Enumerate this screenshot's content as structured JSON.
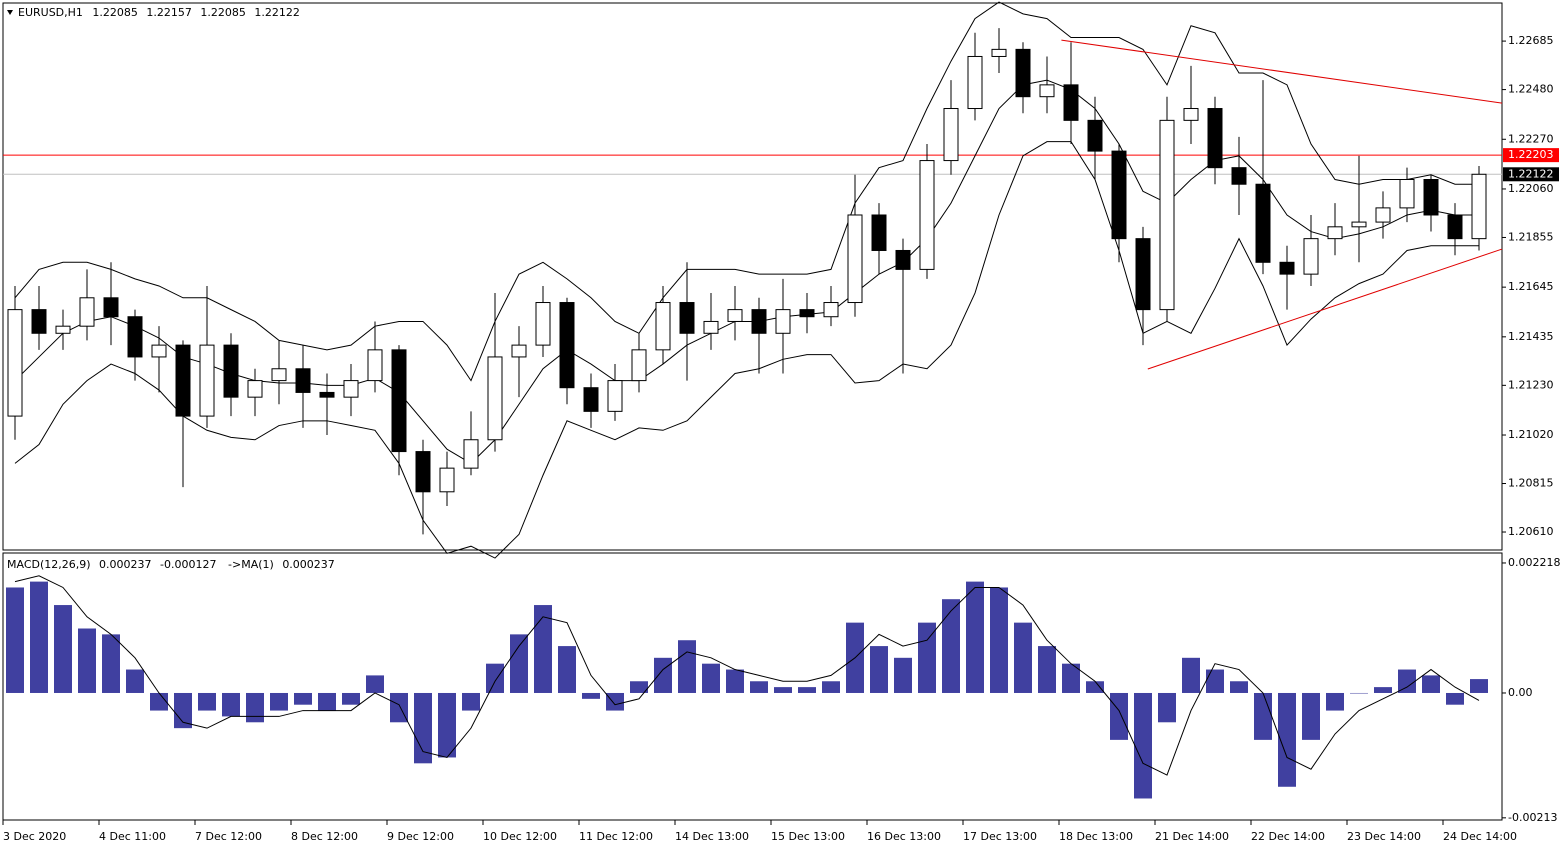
{
  "chart_data": [
    {
      "type": "candlestick",
      "symbol": "EURUSD,H1",
      "header_ohlc": [
        1.22085,
        1.22157,
        1.22085,
        1.22122
      ],
      "categories": [
        "3 Dec 2020",
        null,
        null,
        null,
        "4 Dec 11:00",
        null,
        null,
        null,
        "7 Dec 12:00",
        null,
        null,
        null,
        "8 Dec 12:00",
        null,
        null,
        null,
        "9 Dec 12:00",
        null,
        null,
        null,
        "10 Dec 12:00",
        null,
        null,
        null,
        "11 Dec 12:00",
        null,
        null,
        null,
        "14 Dec 13:00",
        null,
        null,
        null,
        "15 Dec 13:00",
        null,
        null,
        null,
        "16 Dec 13:00",
        null,
        null,
        null,
        "17 Dec 13:00",
        null,
        null,
        null,
        "18 Dec 13:00",
        null,
        null,
        null,
        "21 Dec 14:00",
        null,
        null,
        null,
        "22 Dec 14:00",
        null,
        null,
        null,
        "23 Dec 14:00",
        null,
        null,
        null,
        "24 Dec 14:00",
        null
      ],
      "open": [
        1.211,
        1.2155,
        1.2145,
        1.2148,
        1.216,
        1.2152,
        1.2135,
        1.214,
        1.211,
        1.214,
        1.2118,
        1.2125,
        1.213,
        1.212,
        1.2118,
        1.2125,
        1.2138,
        1.2095,
        1.2078,
        1.2088,
        1.21,
        1.2135,
        1.214,
        1.2158,
        1.2122,
        1.2112,
        1.2125,
        1.2138,
        1.2158,
        1.2145,
        1.215,
        1.2155,
        1.2145,
        1.2155,
        1.2152,
        1.2158,
        1.2195,
        1.218,
        1.2172,
        1.2218,
        1.224,
        1.2262,
        1.2265,
        1.2245,
        1.225,
        1.2235,
        1.2222,
        1.2185,
        1.2155,
        1.2235,
        1.224,
        1.2215,
        1.2208,
        1.2175,
        1.217,
        1.2185,
        1.219,
        1.2192,
        1.2198,
        1.221,
        1.2195,
        1.2185
      ],
      "high": [
        1.2165,
        1.2165,
        1.2155,
        1.2172,
        1.2175,
        1.2155,
        1.2148,
        1.2142,
        1.2165,
        1.2145,
        1.213,
        1.2142,
        1.214,
        1.2128,
        1.2132,
        1.215,
        1.214,
        1.21,
        1.2095,
        1.2112,
        1.2162,
        1.2148,
        1.2165,
        1.216,
        1.2128,
        1.2132,
        1.2145,
        1.2165,
        1.2175,
        1.2162,
        1.2165,
        1.216,
        1.2168,
        1.2162,
        1.2165,
        1.2212,
        1.22,
        1.2185,
        1.2225,
        1.2252,
        1.2272,
        1.2274,
        1.2268,
        1.2262,
        1.2268,
        1.2245,
        1.2225,
        1.219,
        1.2245,
        1.2258,
        1.2245,
        1.2228,
        1.2252,
        1.2182,
        1.2195,
        1.22,
        1.222,
        1.2205,
        1.2215,
        1.2212,
        1.22,
        1.22157
      ],
      "low": [
        1.21,
        1.2138,
        1.2138,
        1.2142,
        1.214,
        1.2125,
        1.212,
        1.208,
        1.2105,
        1.211,
        1.211,
        1.2115,
        1.2105,
        1.2102,
        1.211,
        1.212,
        1.2085,
        1.206,
        1.2072,
        1.2085,
        1.2095,
        1.2118,
        1.2135,
        1.2115,
        1.2105,
        1.2108,
        1.212,
        1.2132,
        1.2125,
        1.2138,
        1.2142,
        1.2128,
        1.2128,
        1.2145,
        1.2148,
        1.2152,
        1.217,
        1.2128,
        1.2168,
        1.2212,
        1.2235,
        1.2255,
        1.2238,
        1.2238,
        1.2225,
        1.221,
        1.2175,
        1.214,
        1.215,
        1.2225,
        1.2208,
        1.2195,
        1.217,
        1.2155,
        1.2165,
        1.2178,
        1.2175,
        1.2185,
        1.2192,
        1.2188,
        1.2178,
        1.218
      ],
      "close": [
        1.2155,
        1.2145,
        1.2148,
        1.216,
        1.2152,
        1.2135,
        1.214,
        1.211,
        1.214,
        1.2118,
        1.2125,
        1.213,
        1.212,
        1.2118,
        1.2125,
        1.2138,
        1.2095,
        1.2078,
        1.2088,
        1.21,
        1.2135,
        1.214,
        1.2158,
        1.2122,
        1.2112,
        1.2125,
        1.2138,
        1.2158,
        1.2145,
        1.215,
        1.2155,
        1.2145,
        1.2155,
        1.2152,
        1.2158,
        1.2195,
        1.218,
        1.2172,
        1.2218,
        1.224,
        1.2262,
        1.2265,
        1.2245,
        1.225,
        1.2235,
        1.2222,
        1.2185,
        1.2155,
        1.2235,
        1.224,
        1.2215,
        1.2208,
        1.2175,
        1.217,
        1.2185,
        1.219,
        1.2192,
        1.2198,
        1.221,
        1.2195,
        1.2185,
        1.22122
      ],
      "bands": {
        "upper": [
          1.216,
          1.2172,
          1.2175,
          1.2175,
          1.2172,
          1.2168,
          1.2165,
          1.216,
          1.216,
          1.2155,
          1.215,
          1.2142,
          1.214,
          1.2138,
          1.214,
          1.2148,
          1.215,
          1.215,
          1.214,
          1.2125,
          1.215,
          1.217,
          1.2175,
          1.2168,
          1.216,
          1.215,
          1.2145,
          1.216,
          1.2172,
          1.2172,
          1.2172,
          1.217,
          1.217,
          1.217,
          1.2172,
          1.22,
          1.2215,
          1.2218,
          1.224,
          1.226,
          1.2278,
          1.2285,
          1.228,
          1.2278,
          1.227,
          1.227,
          1.227,
          1.2265,
          1.225,
          1.2275,
          1.2272,
          1.2255,
          1.2255,
          1.225,
          1.2225,
          1.221,
          1.2208,
          1.221,
          1.221,
          1.2212,
          1.2208,
          1.2208
        ],
        "middle": [
          1.2125,
          1.2135,
          1.2145,
          1.215,
          1.2152,
          1.2148,
          1.2143,
          1.2135,
          1.2132,
          1.2128,
          1.2125,
          1.2124,
          1.2124,
          1.2123,
          1.2123,
          1.2126,
          1.212,
          1.2108,
          1.2096,
          1.209,
          1.21,
          1.2115,
          1.213,
          1.2138,
          1.2132,
          1.2125,
          1.2125,
          1.2132,
          1.214,
          1.2145,
          1.215,
          1.215,
          1.2152,
          1.2153,
          1.2154,
          1.2162,
          1.217,
          1.2175,
          1.2185,
          1.22,
          1.222,
          1.224,
          1.225,
          1.2252,
          1.2248,
          1.224,
          1.2225,
          1.2205,
          1.22,
          1.221,
          1.2218,
          1.222,
          1.221,
          1.2195,
          1.2188,
          1.2185,
          1.2187,
          1.219,
          1.2195,
          1.2197,
          1.2195,
          1.2195
        ],
        "lower": [
          1.209,
          1.2098,
          1.2115,
          1.2125,
          1.2132,
          1.2128,
          1.2121,
          1.211,
          1.2104,
          1.2101,
          1.21,
          1.2106,
          1.2108,
          1.2108,
          1.2106,
          1.2104,
          1.209,
          1.2066,
          1.2052,
          1.2055,
          1.205,
          1.206,
          1.2085,
          1.2108,
          1.2104,
          1.21,
          1.2105,
          1.2104,
          1.2108,
          1.2118,
          1.2128,
          1.213,
          1.2134,
          1.2136,
          1.2136,
          1.2124,
          1.2125,
          1.2132,
          1.213,
          1.214,
          1.2162,
          1.2195,
          1.222,
          1.2226,
          1.2226,
          1.221,
          1.218,
          1.2145,
          1.215,
          1.2145,
          1.2164,
          1.2185,
          1.2165,
          1.214,
          1.2151,
          1.216,
          1.2166,
          1.217,
          1.218,
          1.2182,
          1.2182,
          1.2182
        ]
      },
      "trendlines": [
        {
          "x": [
            44.1,
            62.46
          ],
          "y": [
            1.22689,
            1.22423
          ],
          "color": "#e00000"
        },
        {
          "x": [
            47.7,
            62.46
          ],
          "y": [
            1.21299,
            1.21806
          ],
          "color": "#e00000"
        }
      ],
      "levels": [
        {
          "value": 1.22203,
          "color": "#ff0000",
          "label_color": "#ff0000"
        },
        {
          "value": 1.22122,
          "color": "#c0c0c0",
          "label_color": "#000000"
        }
      ],
      "ylim": [
        1.20534,
        1.22846
      ],
      "yticks": [
        1.22685,
        {
          "value": 1.2248,
          "label": "1.22480"
        },
        {
          "value": 1.2227,
          "label": "1.22270"
        },
        {
          "value": 1.2206,
          "label": "1.22060"
        },
        1.21855,
        1.21645,
        1.21435,
        {
          "value": 1.2123,
          "label": "1.21230"
        },
        {
          "value": 1.2102,
          "label": "1.21020"
        },
        1.20815,
        {
          "value": 1.2061,
          "label": "1.20610"
        }
      ]
    },
    {
      "type": "macd",
      "label": "MACD(12,26,9)",
      "main": 0.000237,
      "signal_value": -0.000127,
      "ma_label": "->MA(1)",
      "ma": 0.000237,
      "histogram": [
        0.0018,
        0.0019,
        0.0015,
        0.0011,
        0.001,
        0.0004,
        -0.0003,
        -0.0006,
        -0.0003,
        -0.0004,
        -0.0005,
        -0.0003,
        -0.0002,
        -0.0003,
        -0.0002,
        0.0003,
        -0.0005,
        -0.0012,
        -0.0011,
        -0.0003,
        0.0005,
        0.001,
        0.0015,
        0.0008,
        -0.0001,
        -0.0003,
        0.0002,
        0.0006,
        0.0009,
        0.0005,
        0.0004,
        0.0002,
        0.0001,
        0.0001,
        0.0002,
        0.0012,
        0.0008,
        0.0006,
        0.0012,
        0.0016,
        0.0019,
        0.0018,
        0.0012,
        0.0008,
        0.0005,
        0.0002,
        -0.0008,
        -0.0018,
        -0.0005,
        0.0006,
        0.0004,
        0.0002,
        -0.0008,
        -0.0016,
        -0.0008,
        -0.0003,
        0.0,
        0.0001,
        0.0004,
        0.0003,
        -0.0002,
        0.000237
      ],
      "signal": [
        0.0019,
        0.002,
        0.0018,
        0.0013,
        0.001,
        0.0006,
        0.0,
        -0.0005,
        -0.0006,
        -0.0004,
        -0.0004,
        -0.0004,
        -0.0003,
        -0.0003,
        -0.0003,
        0.0,
        -0.0002,
        -0.001,
        -0.0011,
        -0.0006,
        0.0002,
        0.0008,
        0.0013,
        0.0012,
        0.0003,
        -0.0002,
        -0.0001,
        0.0004,
        0.0007,
        0.0006,
        0.0004,
        0.0003,
        0.0002,
        0.0002,
        0.0003,
        0.0006,
        0.001,
        0.0008,
        0.0009,
        0.0014,
        0.0018,
        0.0018,
        0.0015,
        0.0009,
        0.0005,
        0.0002,
        -0.0003,
        -0.0012,
        -0.0014,
        -0.0003,
        0.0005,
        0.0004,
        0.0,
        -0.0011,
        -0.0013,
        -0.0007,
        -0.0003,
        -0.0001,
        0.0001,
        0.0004,
        0.0001,
        -0.000127
      ],
      "color": "#000080",
      "ylim": [
        -0.002167,
        0.002354
      ],
      "yticks": [
        0.002218,
        {
          "value": 0,
          "label": "0.00"
        },
        -0.00213
      ]
    }
  ]
}
